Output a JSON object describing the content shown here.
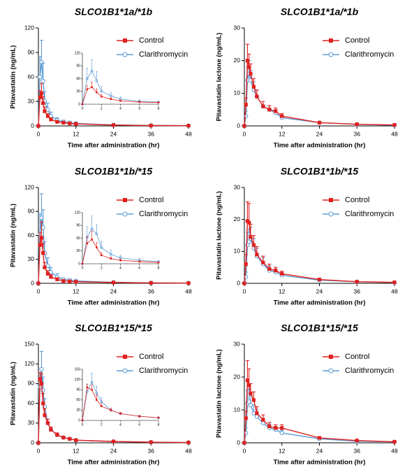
{
  "chart_data": [
    {
      "type": "line",
      "title": "SLCO1B1*1a/*1b",
      "xlabel": "Time after administration (hr)",
      "ylabel": "Pitavastatin (ng/mL)",
      "x": [
        0,
        0.5,
        1,
        1.5,
        2,
        3,
        4,
        6,
        8,
        10,
        12,
        24,
        36,
        48
      ],
      "xlim": [
        0,
        48
      ],
      "xticks": [
        0,
        12,
        24,
        36,
        48
      ],
      "ylim": [
        0,
        120
      ],
      "yticks": [
        0,
        30,
        60,
        90,
        120
      ],
      "series": [
        {
          "name": "Control",
          "color": "#e0201f",
          "marker": "square",
          "values": [
            0,
            35,
            40,
            28,
            18,
            12,
            8,
            5,
            4,
            3,
            2.5,
            1,
            0.5,
            0.3
          ],
          "errors": [
            0,
            8,
            12,
            8,
            5,
            3,
            2,
            1.5,
            1,
            0.8,
            0.6,
            0.3,
            0.2,
            0.1
          ]
        },
        {
          "name": "Clarithromycin",
          "color": "#5b9bd5",
          "marker": "circle-open",
          "values": [
            0,
            60,
            78,
            55,
            30,
            20,
            12,
            7,
            5,
            4,
            3,
            1.2,
            0.6,
            0.3
          ],
          "errors": [
            0,
            25,
            27,
            22,
            12,
            8,
            5,
            3,
            2,
            1.5,
            1,
            0.4,
            0.2,
            0.1
          ]
        }
      ],
      "inset": {
        "xlim": [
          0,
          8
        ],
        "xticks": [
          0,
          2,
          4,
          6,
          8
        ],
        "ylim": [
          0,
          120
        ],
        "yticks": [
          0,
          30,
          60,
          90,
          120
        ]
      }
    },
    {
      "type": "line",
      "title": "SLCO1B1*1a/*1b",
      "xlabel": "Time after administration (hr)",
      "ylabel": "Pitavastatin lactone  (ng/mL)",
      "x": [
        0,
        0.5,
        1,
        1.5,
        2,
        3,
        4,
        6,
        8,
        10,
        12,
        24,
        36,
        48
      ],
      "xlim": [
        0,
        48
      ],
      "xticks": [
        0,
        12,
        24,
        36,
        48
      ],
      "ylim": [
        0,
        30
      ],
      "yticks": [
        0,
        10,
        20,
        30
      ],
      "series": [
        {
          "name": "Control",
          "color": "#e0201f",
          "marker": "square",
          "values": [
            0,
            6.5,
            20,
            18,
            16,
            12,
            9,
            6,
            5,
            4.5,
            3,
            1,
            0.5,
            0.3
          ],
          "errors": [
            0,
            2,
            5,
            4,
            3,
            2.5,
            2,
            1.5,
            1.2,
            1,
            0.8,
            0.3,
            0.2,
            0.1
          ]
        },
        {
          "name": "Clarithromycin",
          "color": "#5b9bd5",
          "marker": "circle-open",
          "values": [
            0,
            3,
            14,
            16,
            14,
            11,
            9,
            6,
            5,
            4,
            2.5,
            1,
            0.5,
            0.2
          ],
          "errors": [
            0,
            1.5,
            4,
            4,
            3,
            2.5,
            2,
            1.5,
            1.2,
            1,
            0.8,
            0.3,
            0.2,
            0.1
          ]
        }
      ]
    },
    {
      "type": "line",
      "title": "SLCO1B1*1b/*15",
      "xlabel": "Time after administration (hr)",
      "ylabel": "Pitavastatin (ng/mL)",
      "x": [
        0,
        0.5,
        1,
        1.5,
        2,
        3,
        4,
        6,
        8,
        10,
        12,
        24,
        36,
        48
      ],
      "xlim": [
        0,
        48
      ],
      "xticks": [
        0,
        12,
        24,
        36,
        48
      ],
      "ylim": [
        0,
        120
      ],
      "yticks": [
        0,
        30,
        60,
        90,
        120
      ],
      "series": [
        {
          "name": "Control",
          "color": "#e0201f",
          "marker": "square",
          "values": [
            0,
            48,
            57,
            38,
            20,
            12,
            8,
            5,
            3,
            2.5,
            2,
            1,
            0.5,
            0.3
          ],
          "errors": [
            0,
            15,
            20,
            12,
            6,
            4,
            3,
            2,
            1,
            0.8,
            0.6,
            0.3,
            0.2,
            0.1
          ]
        },
        {
          "name": "Clarithromycin",
          "color": "#5b9bd5",
          "marker": "circle-open",
          "values": [
            0,
            62,
            82,
            70,
            38,
            22,
            14,
            8,
            5,
            4,
            3,
            1.2,
            0.6,
            0.3
          ],
          "errors": [
            0,
            25,
            30,
            22,
            14,
            10,
            6,
            4,
            2,
            1.5,
            1,
            0.4,
            0.2,
            0.1
          ]
        }
      ],
      "inset": {
        "xlim": [
          0,
          8
        ],
        "xticks": [
          0,
          2,
          4,
          6,
          8
        ],
        "ylim": [
          0,
          120
        ],
        "yticks": [
          0,
          30,
          60,
          90,
          120
        ]
      }
    },
    {
      "type": "line",
      "title": "SLCO1B1*1b/*15",
      "xlabel": "Time after administration (hr)",
      "ylabel": "Pitavastatin lactone  (ng/mL)",
      "x": [
        0,
        0.5,
        1,
        1.5,
        2,
        3,
        4,
        6,
        8,
        10,
        12,
        24,
        36,
        48
      ],
      "xlim": [
        0,
        48
      ],
      "xticks": [
        0,
        12,
        24,
        36,
        48
      ],
      "ylim": [
        0,
        30
      ],
      "yticks": [
        0,
        10,
        20,
        30
      ],
      "series": [
        {
          "name": "Control",
          "color": "#e0201f",
          "marker": "square",
          "values": [
            0,
            6,
            19.5,
            19,
            14.5,
            12,
            9,
            6.5,
            4.5,
            4,
            3,
            1.2,
            0.5,
            0.3
          ],
          "errors": [
            0,
            3,
            6,
            6,
            4,
            3,
            2.5,
            2,
            1.5,
            1,
            0.8,
            0.3,
            0.2,
            0.1
          ]
        },
        {
          "name": "Clarithromycin",
          "color": "#5b9bd5",
          "marker": "circle-open",
          "values": [
            0,
            2,
            12,
            13,
            14,
            11,
            8.5,
            6,
            4,
            3.5,
            2.5,
            1,
            0.5,
            0.2
          ],
          "errors": [
            0,
            1.5,
            4,
            4,
            3.5,
            3,
            2.5,
            2,
            1.5,
            1,
            0.8,
            0.3,
            0.2,
            0.1
          ]
        }
      ]
    },
    {
      "type": "line",
      "title": "SLCO1B1*15/*15",
      "xlabel": "Time after administration (hr)",
      "ylabel": "Pitavastatin (ng/mL)",
      "x": [
        0,
        0.5,
        1,
        1.5,
        2,
        3,
        4,
        6,
        8,
        10,
        12,
        24,
        36,
        48
      ],
      "xlim": [
        0,
        48
      ],
      "xticks": [
        0,
        12,
        24,
        36,
        48
      ],
      "ylim": [
        0,
        150
      ],
      "yticks": [
        0,
        30,
        60,
        90,
        120,
        150
      ],
      "series": [
        {
          "name": "Control",
          "color": "#e0201f",
          "marker": "square",
          "values": [
            0,
            97,
            90,
            60,
            42,
            30,
            20,
            12,
            8,
            6,
            4,
            2,
            1,
            0.5
          ],
          "errors": [
            0,
            10,
            15,
            15,
            10,
            6,
            4,
            3,
            2,
            1.5,
            1,
            0.5,
            0.3,
            0.2
          ]
        },
        {
          "name": "Clarithromycin",
          "color": "#5b9bd5",
          "marker": "circle-open",
          "values": [
            0,
            85,
            112,
            80,
            55,
            30,
            20,
            12,
            8,
            6,
            4,
            2,
            1,
            0.5
          ],
          "errors": [
            0,
            20,
            27,
            20,
            12,
            6,
            4,
            3,
            2,
            1.5,
            1,
            0.5,
            0.3,
            0.2
          ]
        }
      ],
      "inset": {
        "xlim": [
          0,
          8
        ],
        "xticks": [
          0,
          2,
          4,
          6,
          8
        ],
        "ylim": [
          0,
          150
        ],
        "yticks": [
          0,
          30,
          60,
          90,
          120,
          150
        ]
      }
    },
    {
      "type": "line",
      "title": "SLCO1B1*15/*15",
      "xlabel": "Time after administration (hr)",
      "ylabel": "Pitavastatin lactone  (ng/mL)",
      "x": [
        0,
        0.5,
        1,
        1.5,
        2,
        3,
        4,
        6,
        8,
        10,
        12,
        24,
        36,
        48
      ],
      "xlim": [
        0,
        48
      ],
      "xticks": [
        0,
        12,
        24,
        36,
        48
      ],
      "ylim": [
        0,
        30
      ],
      "yticks": [
        0,
        10,
        20,
        30
      ],
      "series": [
        {
          "name": "Control",
          "color": "#e0201f",
          "marker": "square",
          "values": [
            0,
            7.5,
            19,
            17.5,
            15,
            13,
            9,
            7,
            5,
            4.5,
            4.5,
            1.5,
            0.7,
            0.3
          ],
          "errors": [
            0,
            2,
            6,
            5,
            3,
            2.5,
            2,
            1.5,
            1.2,
            1,
            1,
            0.3,
            0.2,
            0.1
          ]
        },
        {
          "name": "Clarithromycin",
          "color": "#5b9bd5",
          "marker": "circle-open",
          "values": [
            0,
            3,
            12,
            12.5,
            11.5,
            9,
            8,
            6,
            4.5,
            4,
            3,
            1.2,
            0.5,
            0.3
          ],
          "errors": [
            0,
            1.5,
            4,
            4,
            3,
            2.5,
            2,
            1.5,
            1.2,
            1,
            0.8,
            0.3,
            0.2,
            0.1
          ]
        }
      ]
    }
  ]
}
